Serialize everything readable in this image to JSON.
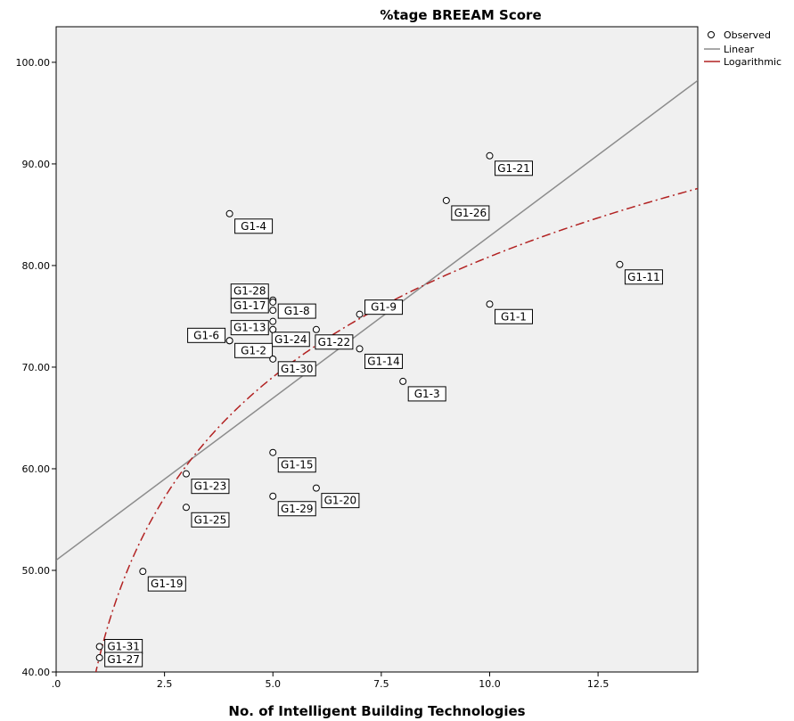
{
  "chart_data": {
    "type": "scatter",
    "title": "%tage BREEAM Score",
    "xlabel": "No. of Intelligent Building Technologies",
    "ylabel": "",
    "xlim": [
      0,
      14.8
    ],
    "ylim": [
      40,
      103.5
    ],
    "x_ticks": [
      0,
      2.5,
      5.0,
      7.5,
      10.0,
      12.5
    ],
    "x_tick_labels": [
      ".0",
      "2.5",
      "5.0",
      "7.5",
      "10.0",
      "12.5"
    ],
    "y_ticks": [
      40,
      50,
      60,
      70,
      80,
      90,
      100
    ],
    "y_tick_labels": [
      "40.00",
      "50.00",
      "60.00",
      "70.00",
      "80.00",
      "90.00",
      "100.00"
    ],
    "grid": false,
    "legend_position": "top-right",
    "legend": {
      "observed": "Observed",
      "linear": "Linear",
      "logarithmic": "Logarithmic"
    },
    "series": [
      {
        "name": "Observed",
        "points": [
          {
            "label": "G1-21",
            "x": 10,
            "y": 90.8
          },
          {
            "label": "G1-26",
            "x": 9,
            "y": 86.4
          },
          {
            "label": "G1-4",
            "x": 4,
            "y": 85.1
          },
          {
            "label": "G1-11",
            "x": 13,
            "y": 80.1
          },
          {
            "label": "G1-28",
            "x": 5,
            "y": 76.6
          },
          {
            "label": "G1-17",
            "x": 5,
            "y": 76.4
          },
          {
            "label": "G1-8",
            "x": 5,
            "y": 75.6
          },
          {
            "label": "G1-1",
            "x": 10,
            "y": 76.2
          },
          {
            "label": "G1-13",
            "x": 5,
            "y": 74.5
          },
          {
            "label": "G1-24",
            "x": 5,
            "y": 73.7
          },
          {
            "label": "G1-6",
            "x": 4,
            "y": 72.6
          },
          {
            "label": "G1-2",
            "x": 4,
            "y": 72.6
          },
          {
            "label": "G1-22",
            "x": 6,
            "y": 73.7
          },
          {
            "label": "G1-9",
            "x": 7,
            "y": 75.2
          },
          {
            "label": "G1-14",
            "x": 7,
            "y": 71.8
          },
          {
            "label": "G1-30",
            "x": 5,
            "y": 70.8
          },
          {
            "label": "G1-3",
            "x": 8,
            "y": 68.6
          },
          {
            "label": "G1-15",
            "x": 5,
            "y": 61.6
          },
          {
            "label": "G1-23",
            "x": 3,
            "y": 59.5
          },
          {
            "label": "G1-20",
            "x": 6,
            "y": 58.1
          },
          {
            "label": "G1-29",
            "x": 5,
            "y": 57.3
          },
          {
            "label": "G1-25",
            "x": 3,
            "y": 56.2
          },
          {
            "label": "G1-19",
            "x": 2,
            "y": 49.9
          },
          {
            "label": "G1-31",
            "x": 1,
            "y": 42.5
          },
          {
            "label": "G1-27",
            "x": 1,
            "y": 41.4
          }
        ]
      }
    ],
    "fits": {
      "linear": {
        "intercept": 51.0,
        "slope": 3.19
      },
      "logarithmic": {
        "intercept": 41.5,
        "coef": 17.1
      }
    }
  }
}
